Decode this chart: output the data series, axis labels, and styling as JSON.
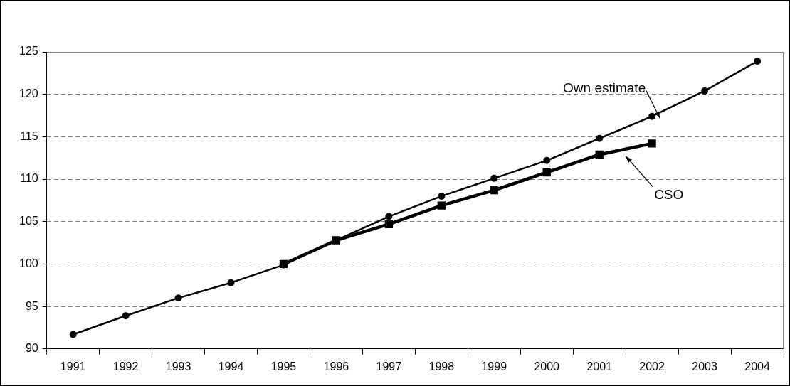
{
  "chart_data": {
    "type": "line",
    "categories": [
      "1991",
      "1992",
      "1993",
      "1994",
      "1995",
      "1996",
      "1997",
      "1998",
      "1999",
      "2000",
      "2001",
      "2002",
      "2003",
      "2004"
    ],
    "series": [
      {
        "name": "Own estimate",
        "color": "#000000",
        "marker": "circle",
        "values": [
          91.7,
          93.9,
          96.0,
          97.8,
          99.9,
          102.8,
          105.6,
          108.0,
          110.1,
          112.2,
          114.8,
          117.4,
          120.4,
          123.9
        ]
      },
      {
        "name": "CSO",
        "color": "#000000",
        "marker": "square",
        "values": [
          null,
          null,
          null,
          null,
          100.0,
          102.8,
          104.7,
          106.9,
          108.7,
          110.8,
          112.9,
          114.2,
          null,
          null
        ]
      }
    ],
    "ylim": [
      90,
      125
    ],
    "yticks": [
      90,
      95,
      100,
      105,
      110,
      115,
      120,
      125
    ],
    "grid": "y",
    "line_style": "solid"
  }
}
